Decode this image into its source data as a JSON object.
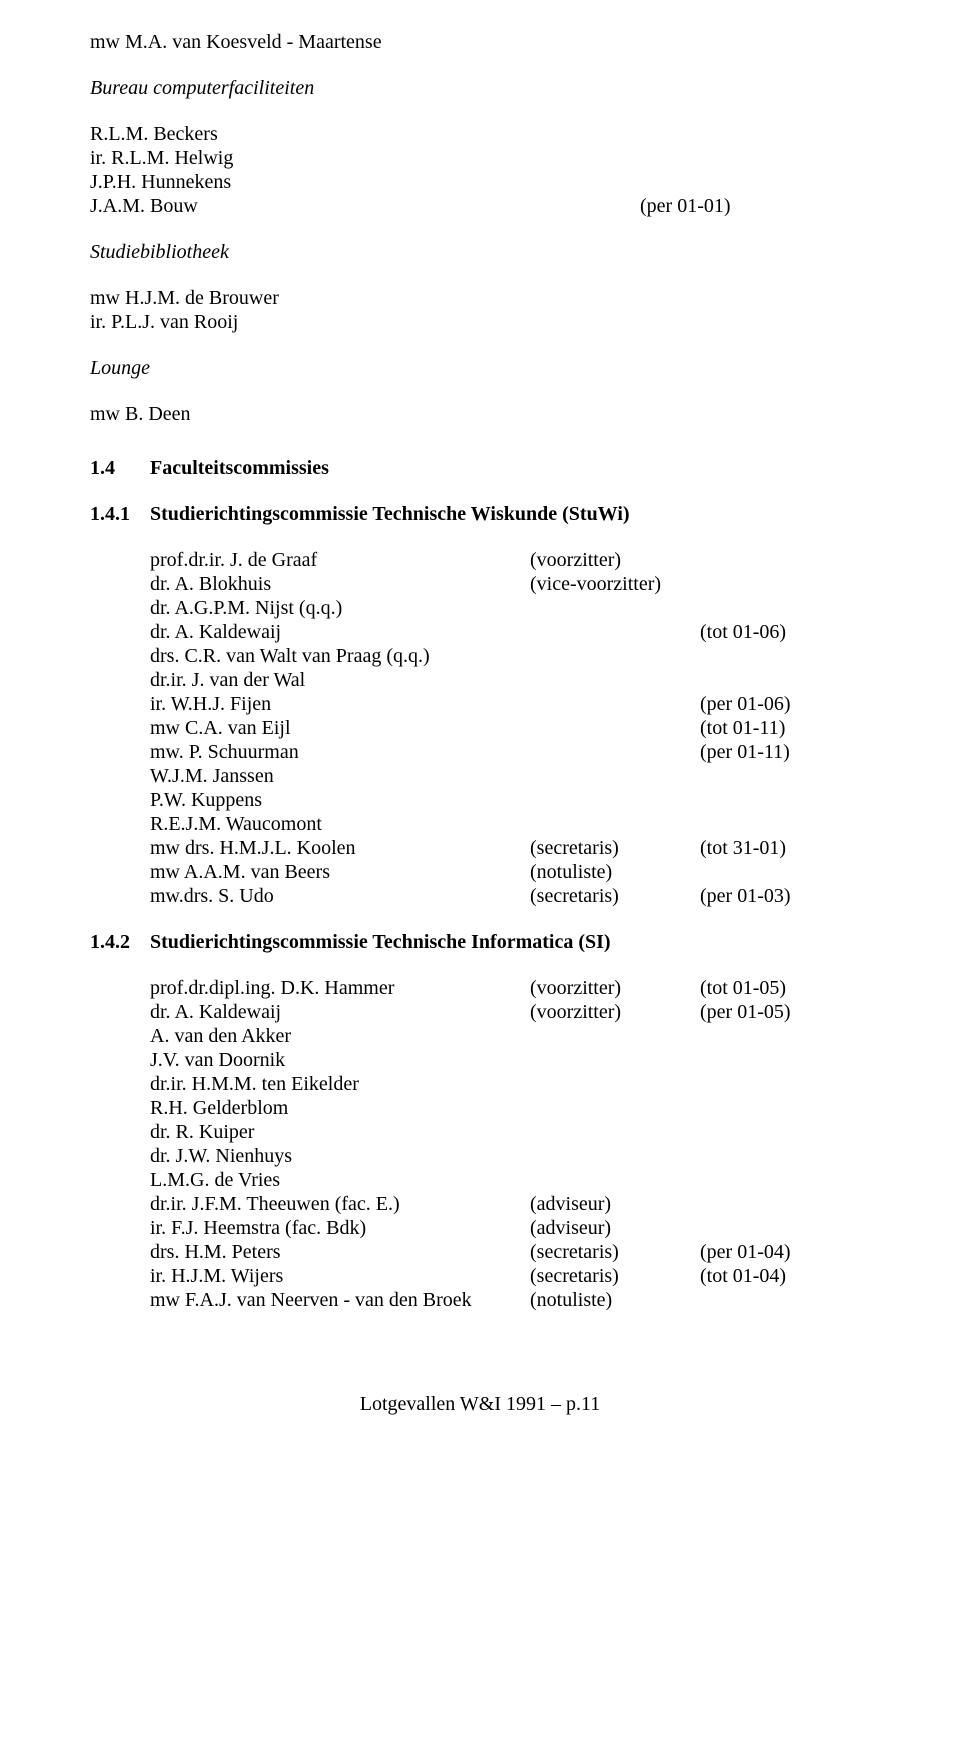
{
  "top_name": "mw M.A. van Koesveld - Maartense",
  "groups": [
    {
      "heading": "Bureau computerfaciliteiten",
      "lines": [
        {
          "name": "R.L.M. Beckers"
        },
        {
          "name": "ir. R.L.M. Helwig"
        },
        {
          "name": "J.P.H. Hunnekens"
        },
        {
          "name": "J.A.M. Bouw",
          "note": "(per 01-01)"
        }
      ]
    },
    {
      "heading": "Studiebibliotheek",
      "lines": [
        {
          "name": "mw H.J.M. de Brouwer"
        },
        {
          "name": "ir. P.L.J. van Rooij"
        }
      ]
    },
    {
      "heading": "Lounge",
      "lines": [
        {
          "name": "mw B. Deen"
        }
      ]
    }
  ],
  "section": {
    "num": "1.4",
    "title": "Faculteitscommissies"
  },
  "sub1": {
    "num": "1.4.1",
    "title": "Studierichtingscommissie Technische Wiskunde (StuWi)",
    "rows": [
      {
        "name": "prof.dr.ir. J. de Graaf",
        "role": "(voorzitter)"
      },
      {
        "name": "dr. A. Blokhuis",
        "role": "(vice-voorzitter)"
      },
      {
        "name": "dr. A.G.P.M. Nijst (q.q.)"
      },
      {
        "name": "dr. A. Kaldewaij",
        "note": "(tot 01-06)"
      },
      {
        "name": "drs. C.R. van Walt van Praag (q.q.)"
      },
      {
        "name": "dr.ir. J. van der Wal"
      },
      {
        "name": "ir. W.H.J. Fijen",
        "note": "(per 01-06)"
      },
      {
        "name": "mw C.A. van Eijl",
        "note": "(tot 01-11)"
      },
      {
        "name": "mw. P. Schuurman",
        "note": "(per 01-11)"
      },
      {
        "name": "W.J.M. Janssen"
      },
      {
        "name": "P.W. Kuppens"
      },
      {
        "name": "R.E.J.M. Waucomont"
      },
      {
        "name": "mw drs. H.M.J.L. Koolen",
        "role": "(secretaris)",
        "note": "(tot 31-01)"
      },
      {
        "name": "mw A.A.M. van Beers",
        "role": "(notuliste)"
      },
      {
        "name": "mw.drs. S. Udo",
        "role": "(secretaris)",
        "note": "(per 01-03)"
      }
    ]
  },
  "sub2": {
    "num": "1.4.2",
    "title": "Studierichtingscommissie Technische Informatica (SI)",
    "rows": [
      {
        "name": "prof.dr.dipl.ing. D.K. Hammer",
        "role": "(voorzitter)",
        "note": "(tot 01-05)"
      },
      {
        "name": "dr. A. Kaldewaij",
        "role": "(voorzitter)",
        "note": "(per 01-05)"
      },
      {
        "name": "A. van den Akker"
      },
      {
        "name": "J.V. van Doornik"
      },
      {
        "name": "dr.ir. H.M.M. ten Eikelder"
      },
      {
        "name": "R.H. Gelderblom"
      },
      {
        "name": "dr. R. Kuiper"
      },
      {
        "name": "dr. J.W. Nienhuys"
      },
      {
        "name": "L.M.G. de Vries"
      },
      {
        "name": "dr.ir. J.F.M. Theeuwen (fac. E.)",
        "role": "(adviseur)"
      },
      {
        "name": "ir. F.J. Heemstra (fac. Bdk)",
        "role": "(adviseur)"
      },
      {
        "name": "drs. H.M. Peters",
        "role": "(secretaris)",
        "note": "(per 01-04)"
      },
      {
        "name": "ir. H.J.M. Wijers",
        "role": "(secretaris)",
        "note": "(tot 01-04)"
      },
      {
        "name": "mw F.A.J. van Neerven - van den Broek",
        "role": "(notuliste)"
      }
    ]
  },
  "footer": "Lotgevallen W&I 1991 – p.11"
}
